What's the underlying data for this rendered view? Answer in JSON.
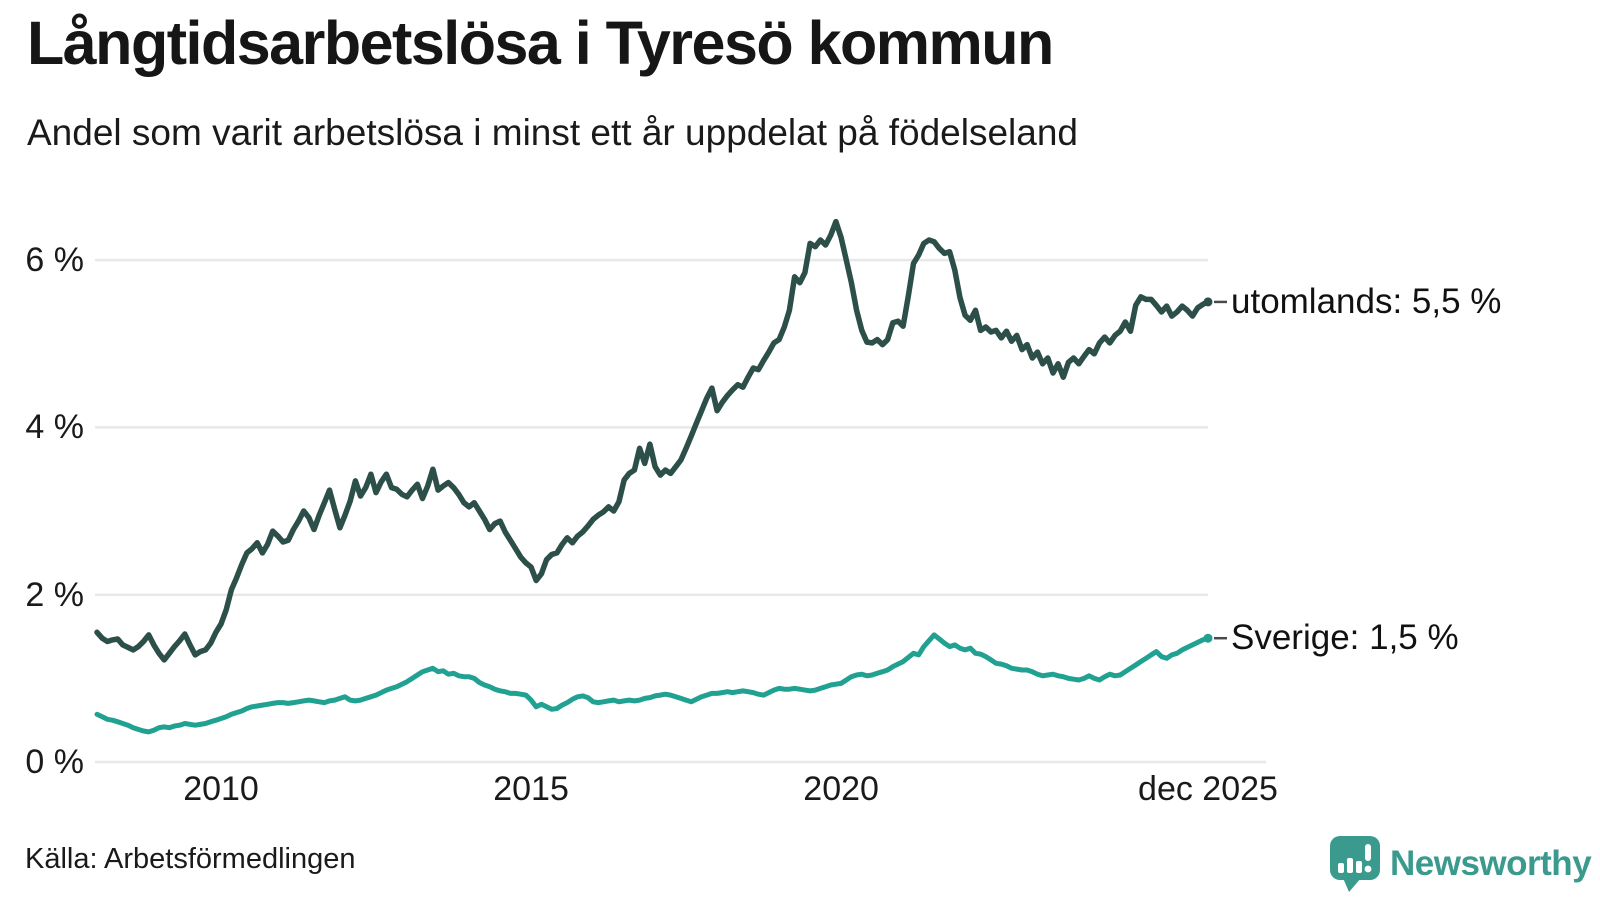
{
  "header": {
    "title": "Långtidsarbetslösa i Tyresö kommun",
    "subtitle": "Andel som varit arbetslösa i minst ett år uppdelat på födelseland"
  },
  "source": {
    "label": "Källa: Arbetsförmedlingen"
  },
  "branding": {
    "name": "Newsworthy",
    "color": "#3a9a8d",
    "icon": "bar-chart-speech-bubble-icon"
  },
  "axes": {
    "y_unit": "%",
    "y_ticks": [
      {
        "value": 6,
        "label": "6 %"
      },
      {
        "value": 4,
        "label": "4 %"
      },
      {
        "value": 2,
        "label": "2 %"
      },
      {
        "value": 0,
        "label": "0 %"
      }
    ],
    "x_ticks": [
      {
        "year": 2010,
        "label": "2010"
      },
      {
        "year": 2015,
        "label": "2015"
      },
      {
        "year": 2020,
        "label": "2020"
      },
      {
        "year": 2025.9167,
        "label": "dec 2025"
      }
    ]
  },
  "chart_data": {
    "type": "line",
    "title": "Långtidsarbetslösa i Tyresö kommun",
    "subtitle": "Andel som varit arbetslösa i minst ett år uppdelat på födelseland",
    "xlabel": "",
    "ylabel": "%",
    "x_start": "2008-01",
    "x_end": "2025-12",
    "x_interval": "monthly",
    "ylim": [
      0,
      6.8
    ],
    "grid": true,
    "legend_position": "right-end-labels",
    "gridline_color": "#e8e8ec",
    "series": [
      {
        "name": "utomlands",
        "end_label": "utomlands: 5,5 %",
        "latest_value": "5,5 %",
        "color": "#2d4f49",
        "values": [
          1.55,
          1.48,
          1.44,
          1.46,
          1.47,
          1.4,
          1.37,
          1.34,
          1.38,
          1.44,
          1.52,
          1.4,
          1.3,
          1.22,
          1.3,
          1.38,
          1.45,
          1.53,
          1.4,
          1.28,
          1.32,
          1.34,
          1.42,
          1.55,
          1.65,
          1.82,
          2.06,
          2.2,
          2.36,
          2.5,
          2.55,
          2.62,
          2.5,
          2.6,
          2.76,
          2.7,
          2.63,
          2.65,
          2.78,
          2.88,
          3.0,
          2.92,
          2.78,
          2.95,
          3.1,
          3.25,
          3.02,
          2.8,
          2.95,
          3.12,
          3.36,
          3.18,
          3.28,
          3.44,
          3.22,
          3.35,
          3.44,
          3.28,
          3.26,
          3.2,
          3.17,
          3.25,
          3.32,
          3.15,
          3.3,
          3.5,
          3.25,
          3.3,
          3.34,
          3.28,
          3.2,
          3.1,
          3.05,
          3.1,
          3.0,
          2.9,
          2.78,
          2.85,
          2.88,
          2.75,
          2.65,
          2.55,
          2.45,
          2.38,
          2.33,
          2.17,
          2.25,
          2.42,
          2.48,
          2.5,
          2.6,
          2.68,
          2.62,
          2.7,
          2.75,
          2.82,
          2.9,
          2.95,
          2.99,
          3.05,
          3.0,
          3.11,
          3.37,
          3.45,
          3.49,
          3.75,
          3.57,
          3.8,
          3.53,
          3.43,
          3.49,
          3.45,
          3.53,
          3.61,
          3.75,
          3.9,
          4.05,
          4.2,
          4.35,
          4.47,
          4.2,
          4.3,
          4.38,
          4.45,
          4.51,
          4.48,
          4.6,
          4.71,
          4.69,
          4.8,
          4.9,
          5.01,
          5.05,
          5.2,
          5.4,
          5.8,
          5.73,
          5.85,
          6.2,
          6.16,
          6.24,
          6.18,
          6.3,
          6.46,
          6.27,
          6.0,
          5.73,
          5.4,
          5.16,
          5.02,
          5.01,
          5.05,
          4.99,
          5.05,
          5.25,
          5.27,
          5.21,
          5.57,
          5.96,
          6.06,
          6.2,
          6.24,
          6.22,
          6.14,
          6.08,
          6.1,
          5.88,
          5.55,
          5.34,
          5.28,
          5.4,
          5.16,
          5.2,
          5.14,
          5.16,
          5.07,
          5.15,
          5.03,
          5.1,
          4.93,
          4.99,
          4.83,
          4.9,
          4.76,
          4.83,
          4.65,
          4.76,
          4.6,
          4.78,
          4.83,
          4.76,
          4.85,
          4.93,
          4.88,
          5.01,
          5.08,
          5.01,
          5.1,
          5.15,
          5.26,
          5.15,
          5.46,
          5.56,
          5.53,
          5.53,
          5.46,
          5.38,
          5.45,
          5.33,
          5.38,
          5.45,
          5.4,
          5.33,
          5.43,
          5.47,
          5.5
        ]
      },
      {
        "name": "Sverige",
        "end_label": "Sverige: 1,5 %",
        "latest_value": "1,5 %",
        "color": "#21a191",
        "values": [
          0.57,
          0.54,
          0.51,
          0.5,
          0.48,
          0.46,
          0.44,
          0.41,
          0.39,
          0.37,
          0.36,
          0.38,
          0.41,
          0.42,
          0.41,
          0.43,
          0.44,
          0.46,
          0.45,
          0.44,
          0.45,
          0.46,
          0.48,
          0.5,
          0.52,
          0.54,
          0.57,
          0.59,
          0.61,
          0.64,
          0.66,
          0.67,
          0.68,
          0.69,
          0.7,
          0.71,
          0.71,
          0.7,
          0.71,
          0.72,
          0.73,
          0.74,
          0.73,
          0.72,
          0.71,
          0.73,
          0.74,
          0.76,
          0.78,
          0.74,
          0.73,
          0.74,
          0.76,
          0.78,
          0.8,
          0.83,
          0.86,
          0.88,
          0.9,
          0.93,
          0.96,
          1.0,
          1.04,
          1.08,
          1.1,
          1.12,
          1.08,
          1.09,
          1.05,
          1.06,
          1.03,
          1.02,
          1.02,
          1.0,
          0.95,
          0.92,
          0.9,
          0.87,
          0.85,
          0.84,
          0.82,
          0.82,
          0.81,
          0.8,
          0.74,
          0.66,
          0.69,
          0.66,
          0.63,
          0.64,
          0.68,
          0.71,
          0.75,
          0.78,
          0.79,
          0.77,
          0.72,
          0.71,
          0.72,
          0.73,
          0.74,
          0.72,
          0.73,
          0.74,
          0.73,
          0.74,
          0.76,
          0.77,
          0.79,
          0.8,
          0.81,
          0.8,
          0.78,
          0.76,
          0.74,
          0.72,
          0.75,
          0.78,
          0.8,
          0.82,
          0.82,
          0.83,
          0.84,
          0.83,
          0.84,
          0.85,
          0.84,
          0.83,
          0.81,
          0.8,
          0.83,
          0.86,
          0.88,
          0.87,
          0.87,
          0.88,
          0.87,
          0.86,
          0.85,
          0.86,
          0.88,
          0.9,
          0.92,
          0.93,
          0.94,
          0.98,
          1.02,
          1.04,
          1.05,
          1.03,
          1.04,
          1.06,
          1.08,
          1.1,
          1.14,
          1.17,
          1.2,
          1.25,
          1.3,
          1.28,
          1.38,
          1.45,
          1.52,
          1.47,
          1.42,
          1.38,
          1.4,
          1.36,
          1.34,
          1.36,
          1.3,
          1.29,
          1.26,
          1.22,
          1.18,
          1.17,
          1.15,
          1.12,
          1.11,
          1.1,
          1.1,
          1.08,
          1.05,
          1.03,
          1.04,
          1.05,
          1.03,
          1.02,
          1.0,
          0.99,
          0.98,
          1.0,
          1.03,
          1.0,
          0.98,
          1.02,
          1.05,
          1.03,
          1.04,
          1.08,
          1.12,
          1.16,
          1.2,
          1.24,
          1.28,
          1.32,
          1.26,
          1.24,
          1.28,
          1.3,
          1.34,
          1.37,
          1.4,
          1.43,
          1.46,
          1.48
        ]
      }
    ]
  }
}
